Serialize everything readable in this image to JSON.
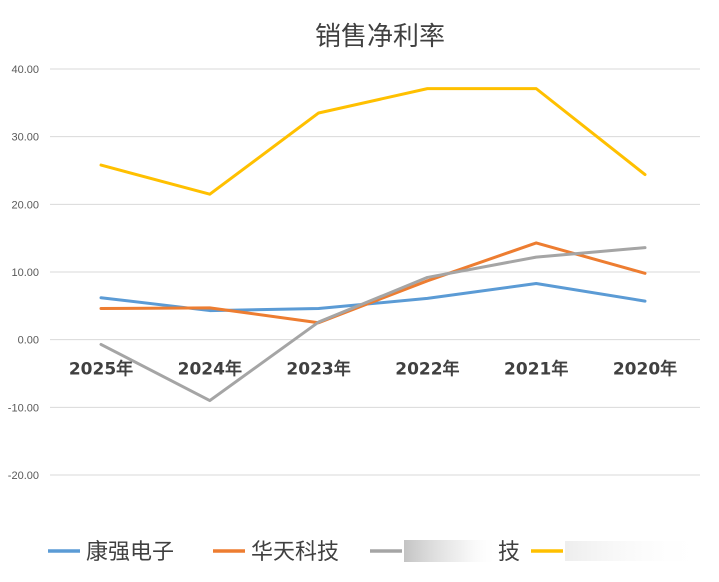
{
  "chart_data": {
    "type": "line",
    "title": "销售净利率",
    "categories": [
      "2025年",
      "2024年",
      "2023年",
      "2022年",
      "2021年",
      "2020年"
    ],
    "ylim": [
      -20,
      40
    ],
    "yticks": [
      "40.00",
      "30.00",
      "20.00",
      "10.00",
      "0.00",
      "-10.00",
      "-20.00"
    ],
    "grid": true,
    "legend_position": "bottom",
    "series": [
      {
        "name": "康强电子",
        "color": "#5B9BD5",
        "values": [
          6.2,
          4.3,
          4.6,
          6.1,
          8.3,
          5.7
        ]
      },
      {
        "name": "华天科技",
        "color": "#ED7D31",
        "values": [
          4.6,
          4.7,
          2.5,
          8.7,
          14.3,
          9.8
        ]
      },
      {
        "name": "",
        "color": "#A5A5A5",
        "values": [
          -0.7,
          -9.0,
          2.6,
          9.2,
          12.2,
          13.6
        ]
      },
      {
        "name": "",
        "color": "#FFC000",
        "values": [
          25.8,
          21.5,
          33.5,
          37.1,
          37.1,
          24.4
        ]
      }
    ],
    "legend_fragment": "技"
  }
}
